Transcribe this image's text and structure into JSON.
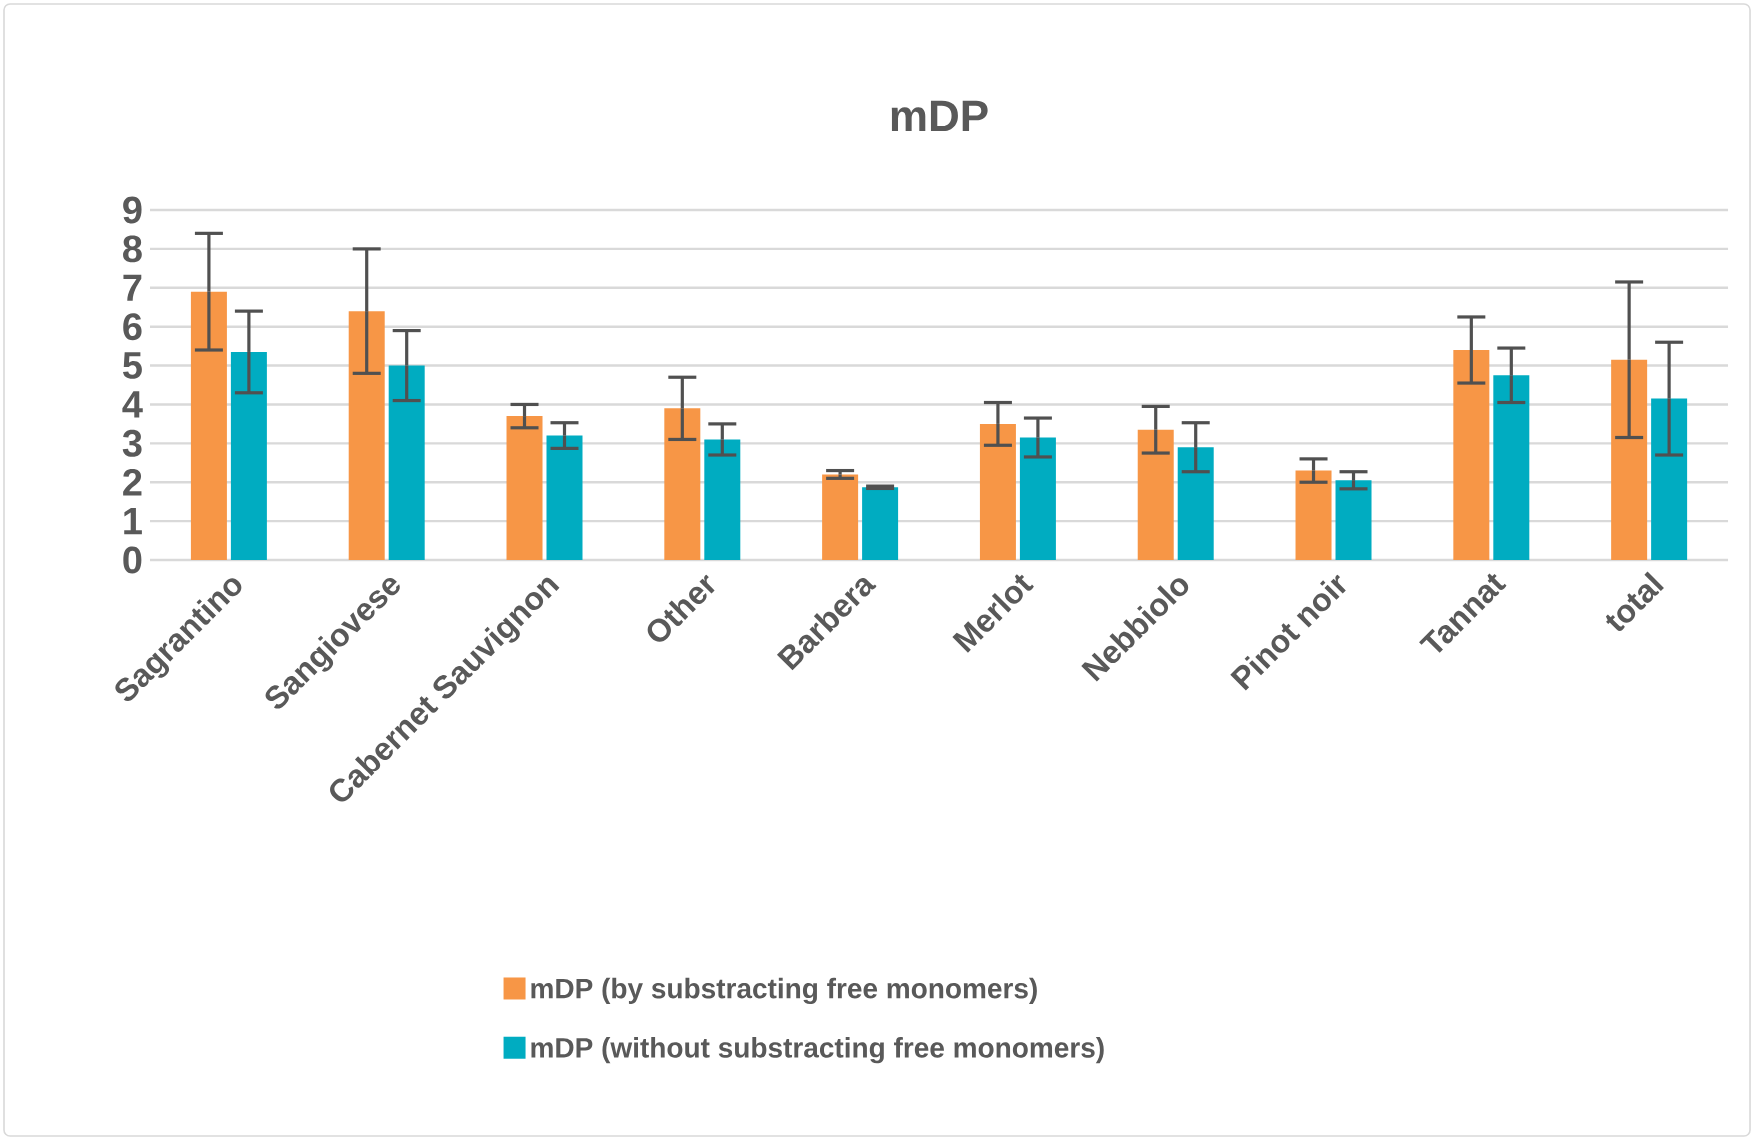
{
  "chart_data": {
    "type": "bar",
    "title": "mDP",
    "categories": [
      "Sagrantino",
      "Sangiovese",
      "Cabernet Sauvignon",
      "Other",
      "Barbera",
      "Merlot",
      "Nebbiolo",
      "Pinot noir",
      "Tannat",
      "total"
    ],
    "series": [
      {
        "name": "mDP (by substracting free monomers)",
        "color": "#f79646",
        "values": [
          6.9,
          6.4,
          3.7,
          3.9,
          2.2,
          3.5,
          3.35,
          2.3,
          5.4,
          5.15
        ],
        "errors": [
          1.5,
          1.6,
          0.3,
          0.8,
          0.1,
          0.55,
          0.6,
          0.3,
          0.85,
          2.0
        ]
      },
      {
        "name": "mDP (without substracting free monomers)",
        "color": "#00acc1",
        "values": [
          5.35,
          5.0,
          3.2,
          3.1,
          1.87,
          3.15,
          2.9,
          2.05,
          4.75,
          4.15
        ],
        "errors": [
          1.05,
          0.9,
          0.33,
          0.4,
          0.03,
          0.5,
          0.63,
          0.22,
          0.7,
          1.45
        ]
      }
    ],
    "ylim": [
      0,
      9
    ],
    "yticks": [
      0,
      1,
      2,
      3,
      4,
      5,
      6,
      7,
      8,
      9
    ],
    "grid": "y",
    "legend": "bottom"
  }
}
